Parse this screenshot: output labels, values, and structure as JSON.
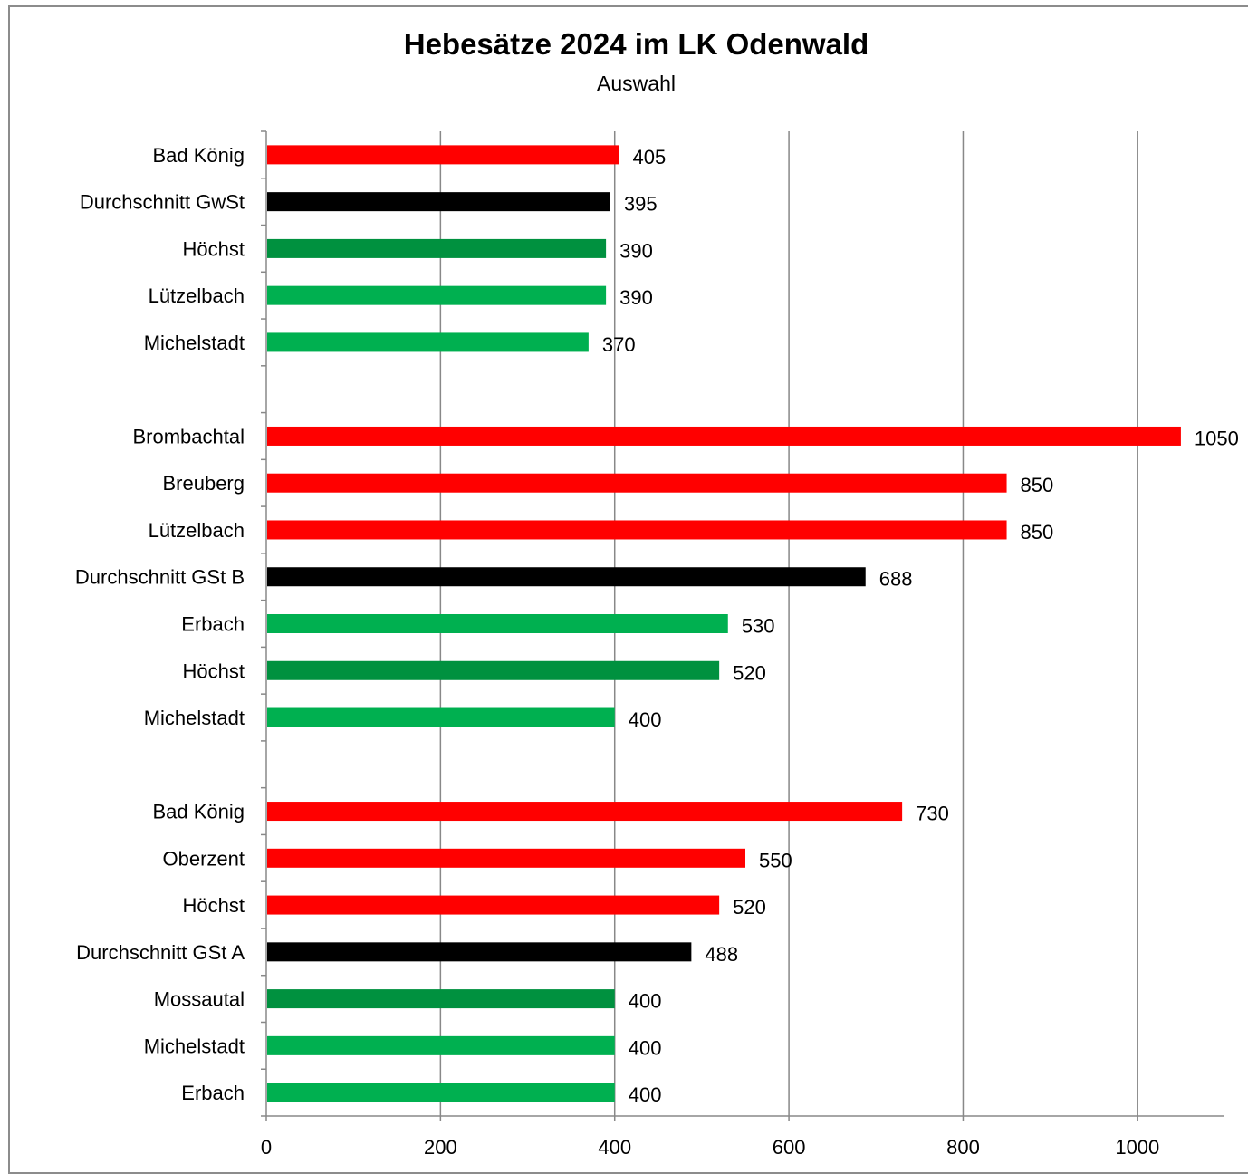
{
  "chart_data": {
    "type": "bar",
    "orientation": "horizontal",
    "title": "Hebesätze 2024 im LK Odenwald",
    "subtitle": "Auswahl",
    "xlim": [
      0,
      1100
    ],
    "xticks": [
      0,
      200,
      400,
      600,
      800,
      1000
    ],
    "grid": true,
    "legend": "none",
    "colors": {
      "red": "#ff0000",
      "black": "#000000",
      "dark_green": "#00913f",
      "green": "#00b050",
      "grid": "#888888"
    },
    "rows": [
      {
        "label": "Bad König",
        "value": 405,
        "color": "red"
      },
      {
        "label": "Durchschnitt GwSt",
        "value": 395,
        "color": "black"
      },
      {
        "label": "Höchst",
        "value": 390,
        "color": "dark_green"
      },
      {
        "label": "Lützelbach",
        "value": 390,
        "color": "green"
      },
      {
        "label": "Michelstadt",
        "value": 370,
        "color": "green"
      },
      {
        "label": "",
        "value": null,
        "color": null
      },
      {
        "label": "Brombachtal",
        "value": 1050,
        "color": "red"
      },
      {
        "label": "Breuberg",
        "value": 850,
        "color": "red"
      },
      {
        "label": "Lützelbach",
        "value": 850,
        "color": "red"
      },
      {
        "label": "Durchschnitt GSt B",
        "value": 688,
        "color": "black"
      },
      {
        "label": "Erbach",
        "value": 530,
        "color": "green"
      },
      {
        "label": "Höchst",
        "value": 520,
        "color": "dark_green"
      },
      {
        "label": "Michelstadt",
        "value": 400,
        "color": "green"
      },
      {
        "label": "",
        "value": null,
        "color": null
      },
      {
        "label": "Bad König",
        "value": 730,
        "color": "red"
      },
      {
        "label": "Oberzent",
        "value": 550,
        "color": "red"
      },
      {
        "label": "Höchst",
        "value": 520,
        "color": "red"
      },
      {
        "label": "Durchschnitt GSt A",
        "value": 488,
        "color": "black"
      },
      {
        "label": "Mossautal",
        "value": 400,
        "color": "dark_green"
      },
      {
        "label": "Michelstadt",
        "value": 400,
        "color": "green"
      },
      {
        "label": "Erbach",
        "value": 400,
        "color": "green"
      }
    ]
  }
}
